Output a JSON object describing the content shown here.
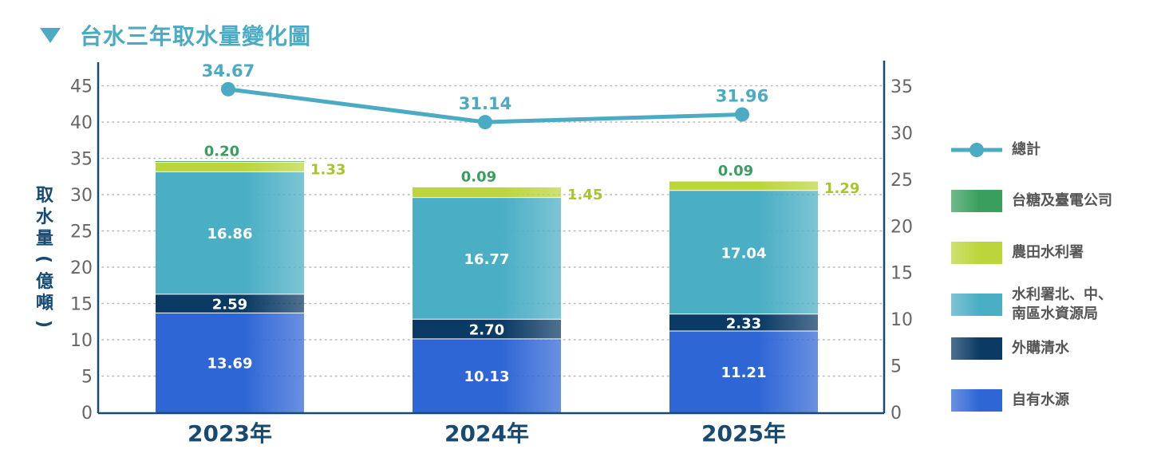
{
  "title": "台水三年取水量變化圖",
  "colors": {
    "accent": "#4aabc3",
    "sugar_power": "#3a9e5e",
    "farm": "#bcd53a",
    "wrb": "#4aaec5",
    "purchase": "#0b3a64",
    "own": "#2f66d6",
    "axis": "#174a73",
    "text_gray": "#555555"
  },
  "chart_data": {
    "type": "bar",
    "stacked": true,
    "categories": [
      "2023年",
      "2024年",
      "2025年"
    ],
    "series": [
      {
        "name": "自有水源",
        "values": [
          13.69,
          10.13,
          11.21
        ],
        "color": "#2f66d6",
        "label_color": "#ffffff"
      },
      {
        "name": "外購清水",
        "values": [
          2.59,
          2.7,
          2.33
        ],
        "color": "#0b3a64",
        "label_color": "#ffffff"
      },
      {
        "name": "水利署北、中、南區水資源局",
        "values": [
          16.86,
          16.77,
          17.04
        ],
        "color": "#4aaec5",
        "label_color": "#ffffff"
      },
      {
        "name": "農田水利署",
        "values": [
          1.33,
          1.45,
          1.29
        ],
        "color": "#bcd53a",
        "label_color": "#a8c52a"
      },
      {
        "name": "台糖及臺電公司",
        "values": [
          0.2,
          0.09,
          0.09
        ],
        "color": "#3a9e5e",
        "label_color": "#3a9e5e"
      }
    ],
    "line": {
      "name": "總計",
      "values": [
        34.67,
        31.14,
        31.96
      ],
      "color": "#4aabc3",
      "axis": "right"
    },
    "ylabel": "取水量（億噸）",
    "ylim_left": [
      0,
      45
    ],
    "yticks_left": [
      "0",
      "5",
      "10",
      "15",
      "20",
      "25",
      "30",
      "35",
      "40",
      "45"
    ],
    "ylim_right": [
      0,
      35
    ],
    "yticks_right": [
      "0",
      "5",
      "10",
      "15",
      "20",
      "25",
      "30",
      "35"
    ],
    "grid": true,
    "legend_position": "right"
  },
  "legend": {
    "items": [
      {
        "label": "總計",
        "kind": "line",
        "color": "#4aabc3"
      },
      {
        "label": "台糖及臺電公司",
        "kind": "bar",
        "color": "#3a9e5e"
      },
      {
        "label": "農田水利署",
        "kind": "bar",
        "color": "#bcd53a"
      },
      {
        "label": "水利署北、中、\n南區水資源局",
        "kind": "bar",
        "color": "#4aaec5"
      },
      {
        "label": "外購清水",
        "kind": "bar",
        "color": "#0b3a64"
      },
      {
        "label": "自有水源",
        "kind": "bar",
        "color": "#2f66d6"
      }
    ]
  }
}
